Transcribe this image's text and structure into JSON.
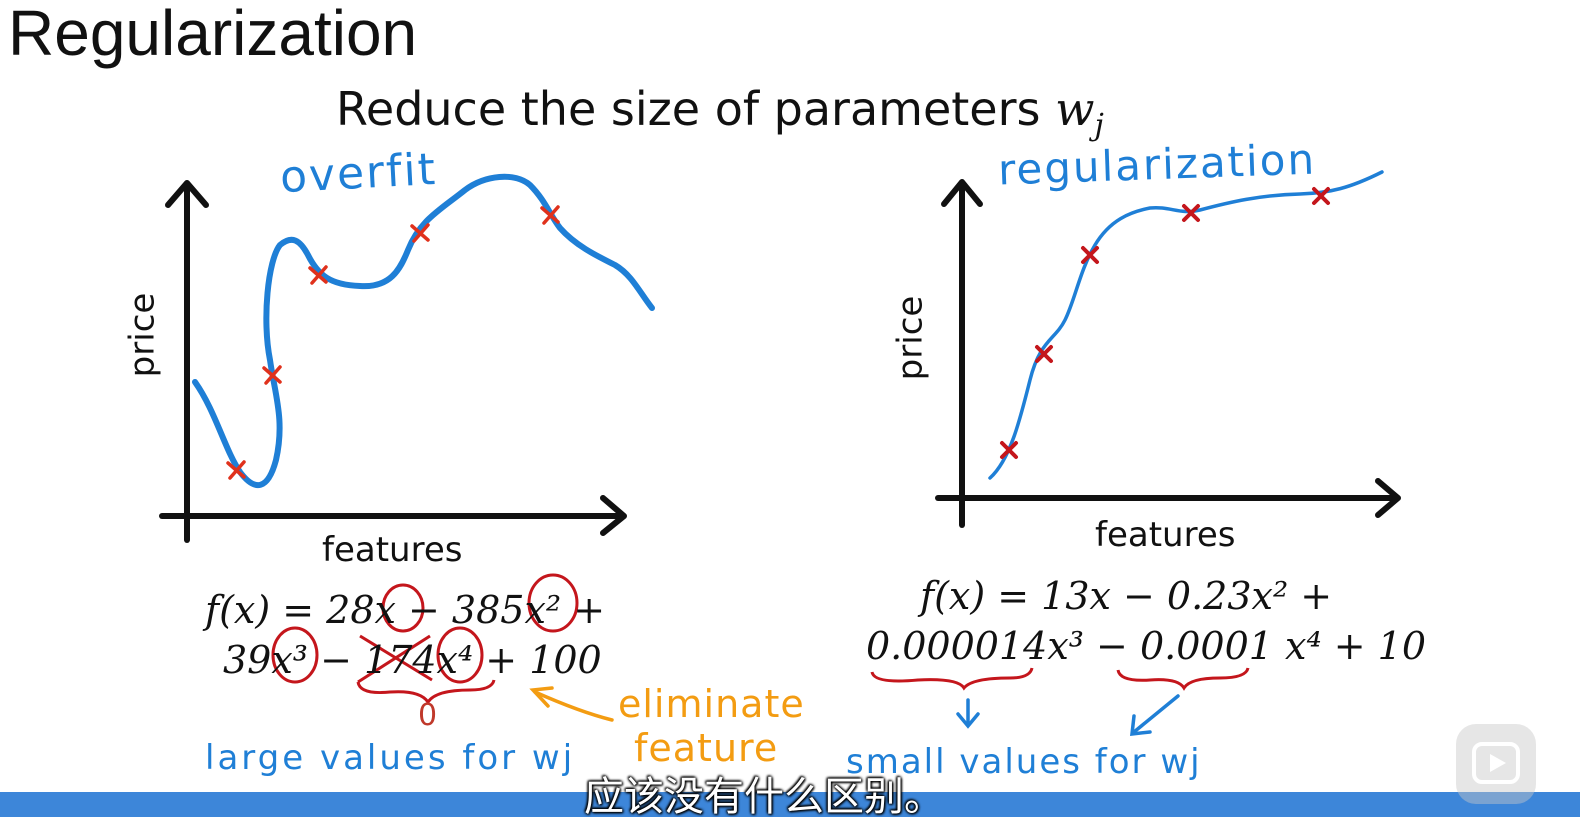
{
  "title": "Regularization",
  "subtitle": {
    "text": "Reduce the size of parameters ",
    "var": "w",
    "sub": "j"
  },
  "left_plot": {
    "annotation": "overfit",
    "ylabel": "price",
    "xlabel": "features",
    "equation_line1": "f(x) = 28x − 385x² +",
    "equation_line2": "39x³ − 174x⁴ + 100",
    "zero_note": "0",
    "eliminate_line1": "eliminate",
    "eliminate_line2": "feature",
    "large_values": "large values for wj"
  },
  "right_plot": {
    "annotation": "regularization",
    "ylabel": "price",
    "xlabel": "features",
    "equation_line1": "f(x) = 13x − 0.23x² +",
    "equation_line2": "0.000014x³ − 0.0001 x⁴ + 10",
    "small_values": "small values for wj"
  },
  "video_subtitle": "应该没有什么区别。",
  "colors": {
    "blue": "#1f7fd6",
    "red": "#c0392b",
    "orange": "#f39c12",
    "progress": "#3d86d9"
  },
  "icons": {
    "play": "play-icon"
  }
}
